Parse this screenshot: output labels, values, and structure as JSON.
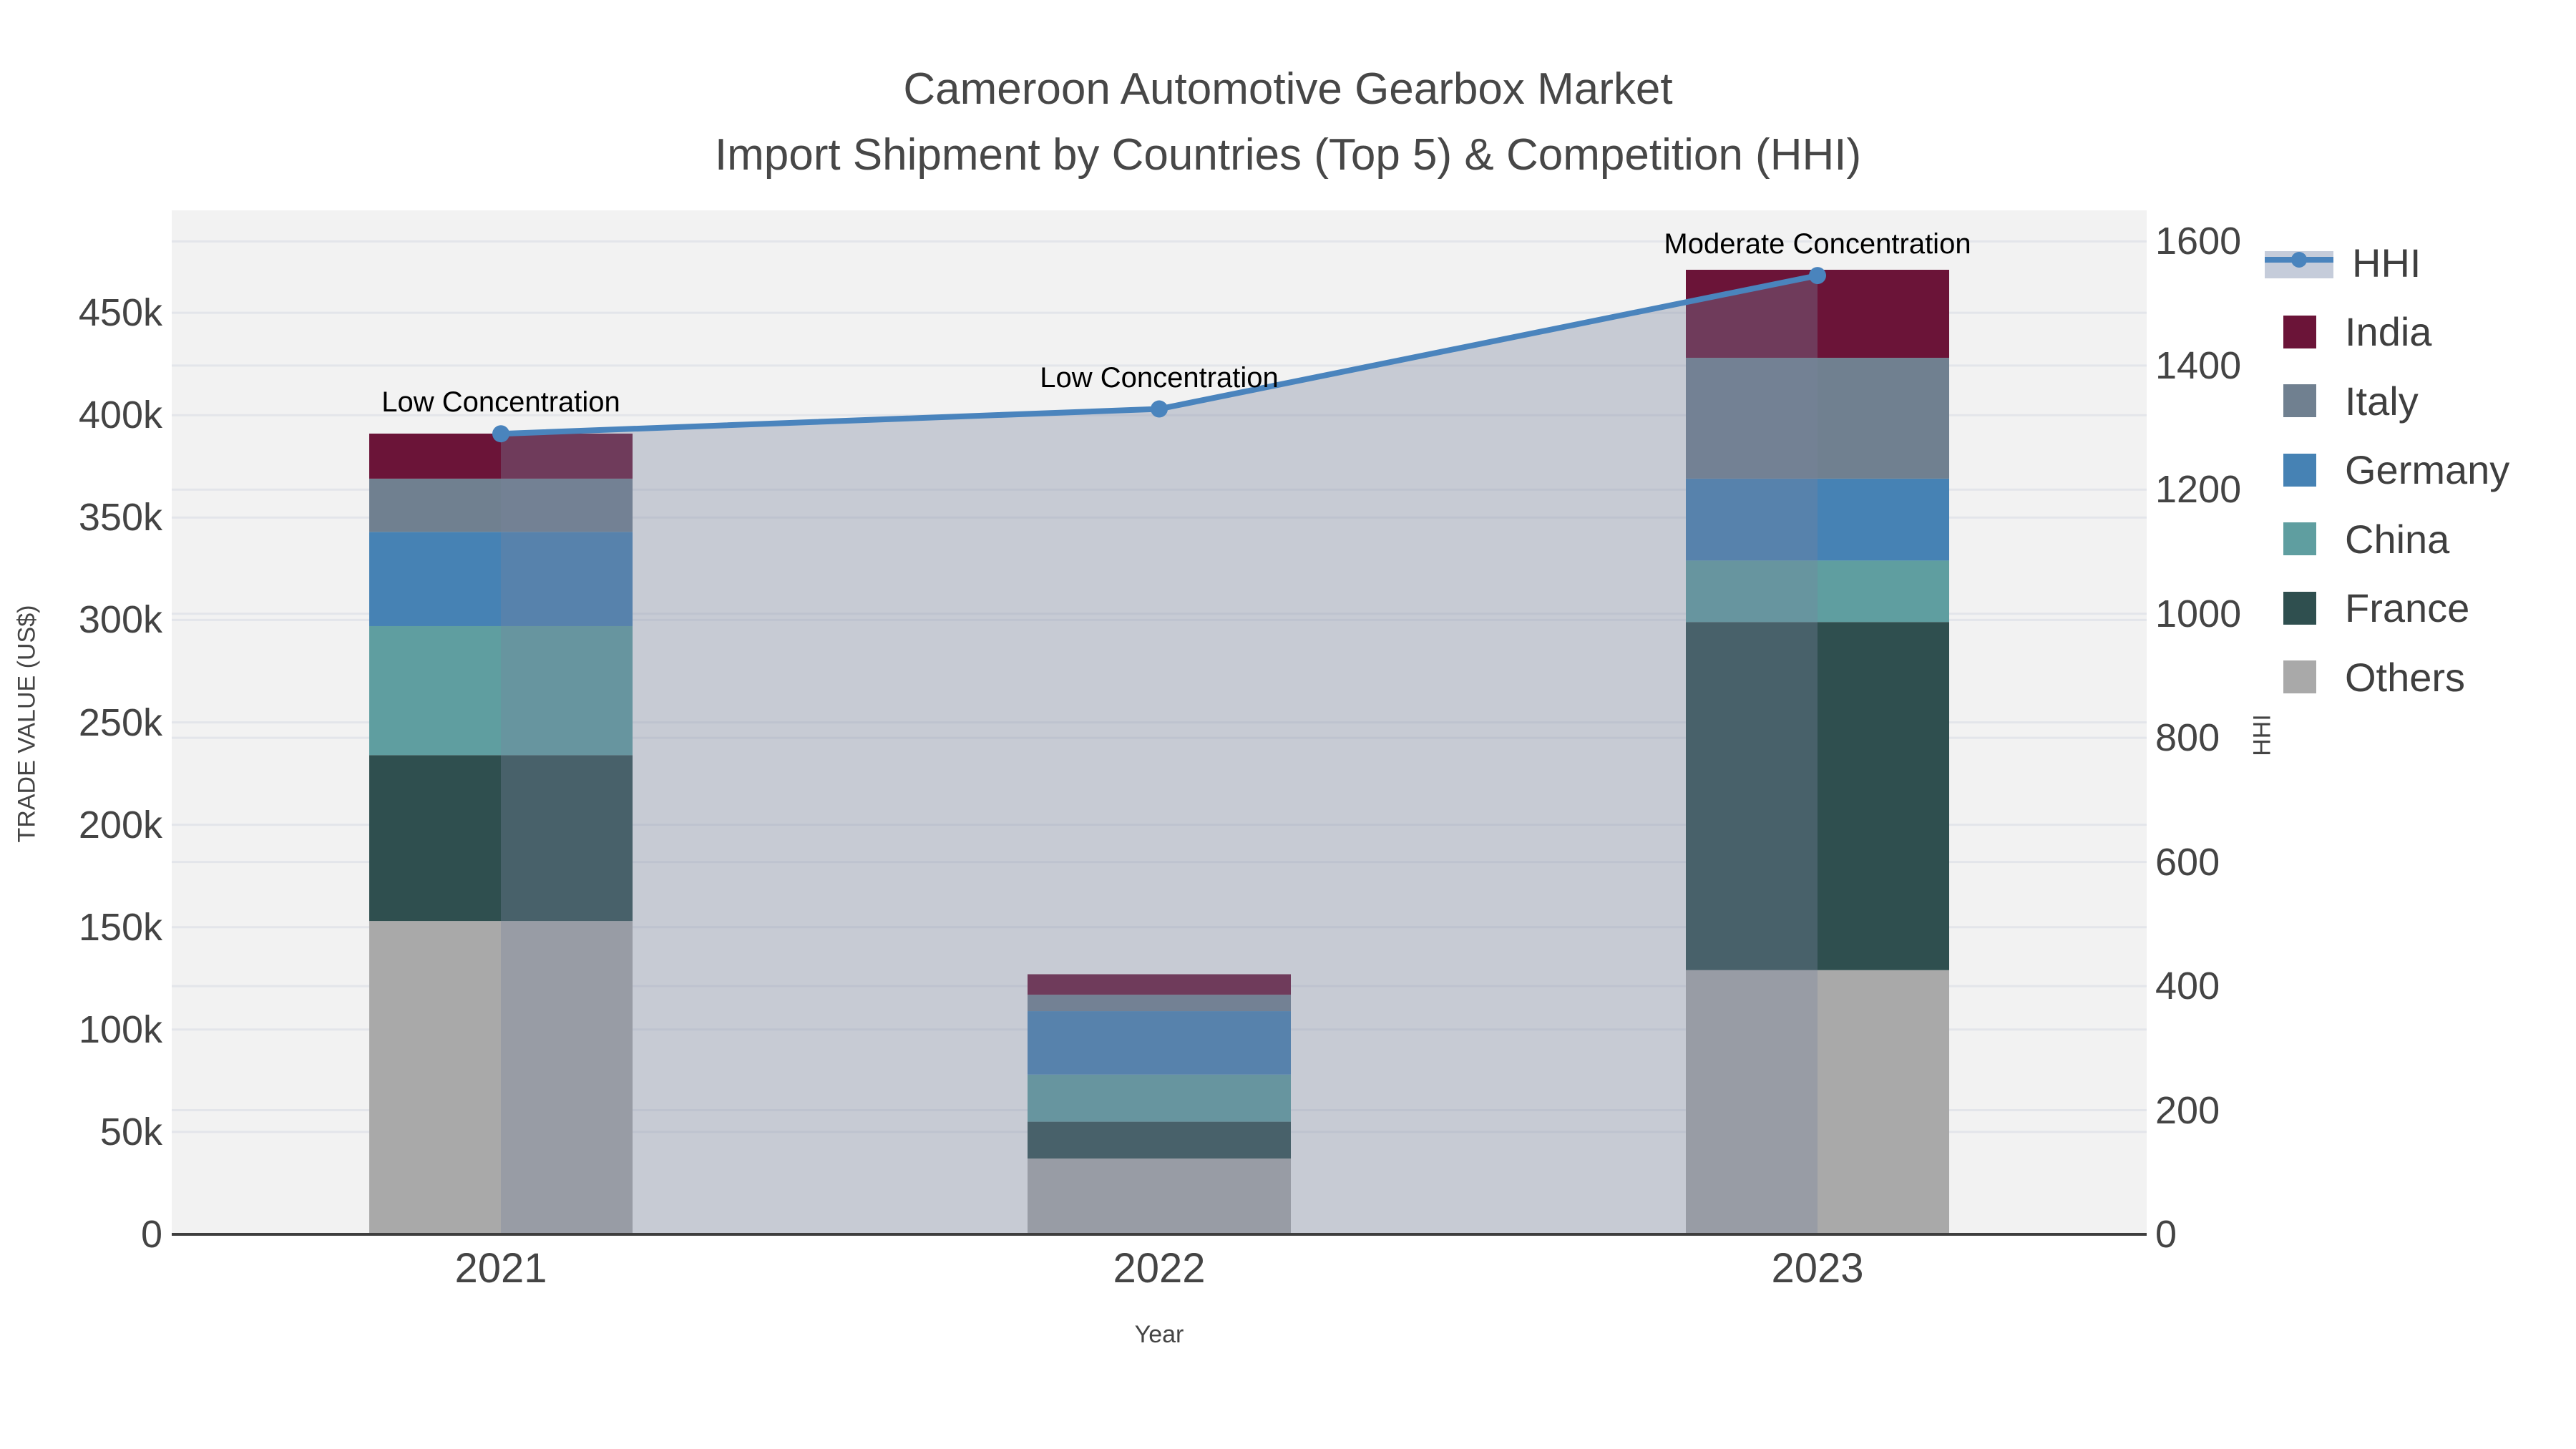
{
  "title": {
    "line1": "Cameroon Automotive Gearbox Market",
    "line2": "Import Shipment by Countries (Top 5) & Competition (HHI)"
  },
  "axes": {
    "x": {
      "title": "Year",
      "categories": [
        "2021",
        "2022",
        "2023"
      ]
    },
    "y_left": {
      "title": "TRADE VALUE (US$)",
      "max": 500000,
      "ticks": [
        {
          "v": 0,
          "label": "0"
        },
        {
          "v": 50000,
          "label": "50k"
        },
        {
          "v": 100000,
          "label": "100k"
        },
        {
          "v": 150000,
          "label": "150k"
        },
        {
          "v": 200000,
          "label": "200k"
        },
        {
          "v": 250000,
          "label": "250k"
        },
        {
          "v": 300000,
          "label": "300k"
        },
        {
          "v": 350000,
          "label": "350k"
        },
        {
          "v": 400000,
          "label": "400k"
        },
        {
          "v": 450000,
          "label": "450k"
        }
      ]
    },
    "y_right": {
      "title": "HHI",
      "max": 1650,
      "ticks": [
        {
          "v": 0,
          "label": "0"
        },
        {
          "v": 200,
          "label": "200"
        },
        {
          "v": 400,
          "label": "400"
        },
        {
          "v": 600,
          "label": "600"
        },
        {
          "v": 800,
          "label": "800"
        },
        {
          "v": 1000,
          "label": "1000"
        },
        {
          "v": 1200,
          "label": "1200"
        },
        {
          "v": 1400,
          "label": "1400"
        },
        {
          "v": 1600,
          "label": "1600"
        }
      ]
    }
  },
  "legend": {
    "items": [
      {
        "label": "HHI",
        "type": "line",
        "color": "#4A84BD"
      },
      {
        "label": "India",
        "type": "box",
        "color": "#6B1438"
      },
      {
        "label": "Italy",
        "type": "box",
        "color": "#708090"
      },
      {
        "label": "Germany",
        "type": "box",
        "color": "#4682B4"
      },
      {
        "label": "China",
        "type": "box",
        "color": "#5F9EA0"
      },
      {
        "label": "France",
        "type": "box",
        "color": "#2F4F4F"
      },
      {
        "label": "Others",
        "type": "box",
        "color": "#A9A9A9"
      }
    ]
  },
  "annotations": [
    {
      "text": "Low Concentration",
      "category_index": 0
    },
    {
      "text": "Low Concentration",
      "category_index": 1
    },
    {
      "text": "Moderate Concentration",
      "category_index": 2
    }
  ],
  "colors": {
    "hhi_line": "#4A84BD",
    "hhi_fill": "rgba(119,132,158,0.35)",
    "legend_band": "#C5CCDA",
    "plot_bg": "#F2F2F2",
    "grid": "#E3E5EA",
    "axis_line": "#3E3E3E"
  },
  "chart_data": {
    "type": "bar+line",
    "title": "Cameroon Automotive Gearbox Market — Import Shipment by Countries (Top 5) & Competition (HHI)",
    "categories": [
      "2021",
      "2022",
      "2023"
    ],
    "stack_order_bottom_to_top": [
      "Others",
      "France",
      "China",
      "Germany",
      "Italy",
      "India"
    ],
    "series": [
      {
        "name": "Others",
        "color": "#A9A9A9",
        "values": [
          153000,
          37000,
          129000
        ]
      },
      {
        "name": "France",
        "color": "#2F4F4F",
        "values": [
          81000,
          18000,
          170000
        ]
      },
      {
        "name": "China",
        "color": "#5F9EA0",
        "values": [
          63000,
          23000,
          30000
        ]
      },
      {
        "name": "Germany",
        "color": "#4682B4",
        "values": [
          46000,
          31000,
          40000
        ]
      },
      {
        "name": "Italy",
        "color": "#708090",
        "values": [
          26000,
          8000,
          59000
        ]
      },
      {
        "name": "India",
        "color": "#6B1438",
        "values": [
          22000,
          10000,
          43000
        ]
      }
    ],
    "bar_totals": [
      391000,
      127000,
      471000
    ],
    "line_series": {
      "name": "HHI",
      "axis": "right",
      "values": [
        1290,
        1330,
        1545
      ],
      "area_fill": true
    },
    "xlabel": "Year",
    "ylabel_left": "TRADE VALUE (US$)",
    "ylabel_right": "HHI",
    "ylim_left": [
      0,
      500000
    ],
    "ylim_right": [
      0,
      1650
    ],
    "grid": true,
    "legend_position": "top-right"
  }
}
